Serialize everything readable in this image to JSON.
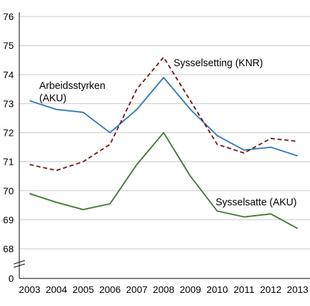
{
  "chart_data": {
    "type": "line",
    "x": [
      2003,
      2004,
      2005,
      2006,
      2007,
      2008,
      2009,
      2010,
      2011,
      2012,
      2013
    ],
    "x_tick_labels": [
      "2003",
      "2004",
      "2005",
      "2006",
      "2007",
      "2008",
      "2009",
      "2010",
      "2011",
      "2012",
      "2013"
    ],
    "y_tick_labels": [
      "0",
      "68",
      "69",
      "70",
      "71",
      "72",
      "73",
      "74",
      "75",
      "76"
    ],
    "ylim": [
      68,
      76
    ],
    "y_axis_break": "between 0 and 68",
    "grid": true,
    "series": [
      {
        "name": "Arbeidsstyrken (AKU)",
        "label_lines": [
          "Arbeidsstyrken",
          "(AKU)"
        ],
        "color": "#3a7dbf",
        "line_style": "solid",
        "values": [
          73.1,
          72.8,
          72.7,
          72.0,
          72.8,
          73.9,
          72.8,
          71.9,
          71.4,
          71.5,
          71.2
        ]
      },
      {
        "name": "Sysselsetting (KNR)",
        "label_lines": [
          "Sysselsetting (KNR)"
        ],
        "color": "#7b1f1f",
        "line_style": "dashed",
        "values": [
          70.9,
          70.7,
          71.0,
          71.6,
          73.5,
          74.6,
          73.1,
          71.6,
          71.3,
          71.8,
          71.7
        ]
      },
      {
        "name": "Sysselsatte (AKU)",
        "label_lines": [
          "Sysselsatte (AKU)"
        ],
        "color": "#4a7a3c",
        "line_style": "solid",
        "values": [
          69.9,
          69.6,
          69.35,
          69.55,
          70.9,
          72.0,
          70.5,
          69.3,
          69.1,
          69.2,
          68.7
        ]
      }
    ]
  }
}
